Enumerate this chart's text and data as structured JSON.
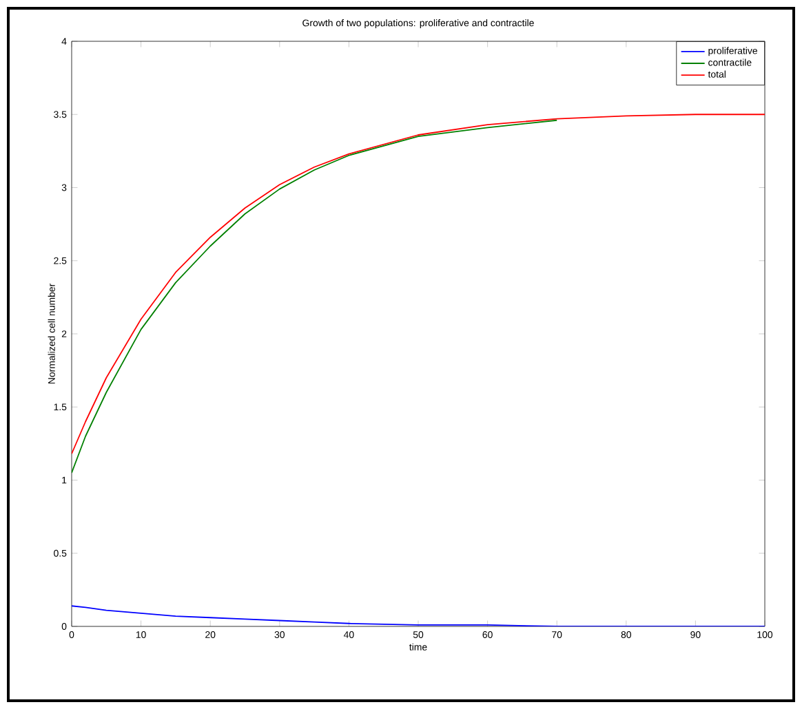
{
  "chart_data": {
    "type": "line",
    "title": "Growth of two populations: proliferative and contractile",
    "xlabel": "time",
    "ylabel": "Normalized cell number",
    "x": [
      0,
      2,
      5,
      10,
      15,
      20,
      25,
      30,
      35,
      40,
      50,
      60,
      70,
      80,
      90,
      100
    ],
    "series": [
      {
        "name": "proliferative",
        "color": "#0000ff",
        "values": [
          0.14,
          0.13,
          0.11,
          0.09,
          0.07,
          0.06,
          0.05,
          0.04,
          0.03,
          0.02,
          0.01,
          0.01,
          0,
          0,
          0,
          0
        ]
      },
      {
        "name": "contractile",
        "color": "#008000",
        "values": [
          1.05,
          1.3,
          1.6,
          2.03,
          2.35,
          2.6,
          2.82,
          2.99,
          3.12,
          3.22,
          3.35,
          3.41,
          3.46,
          null,
          null,
          null
        ]
      },
      {
        "name": "total",
        "color": "#ff0000",
        "values": [
          1.18,
          1.4,
          1.7,
          2.1,
          2.42,
          2.66,
          2.86,
          3.02,
          3.14,
          3.23,
          3.36,
          3.43,
          3.47,
          3.49,
          3.5,
          3.5
        ]
      }
    ],
    "xlim": [
      0,
      100
    ],
    "ylim": [
      0,
      4
    ],
    "xticks": [
      0,
      10,
      20,
      30,
      40,
      50,
      60,
      70,
      80,
      90,
      100
    ],
    "yticks": [
      0,
      0.5,
      1,
      1.5,
      2,
      2.5,
      3,
      3.5,
      4
    ],
    "legend": "top right",
    "grid": false,
    "marker": "none",
    "line_style": "solid"
  }
}
